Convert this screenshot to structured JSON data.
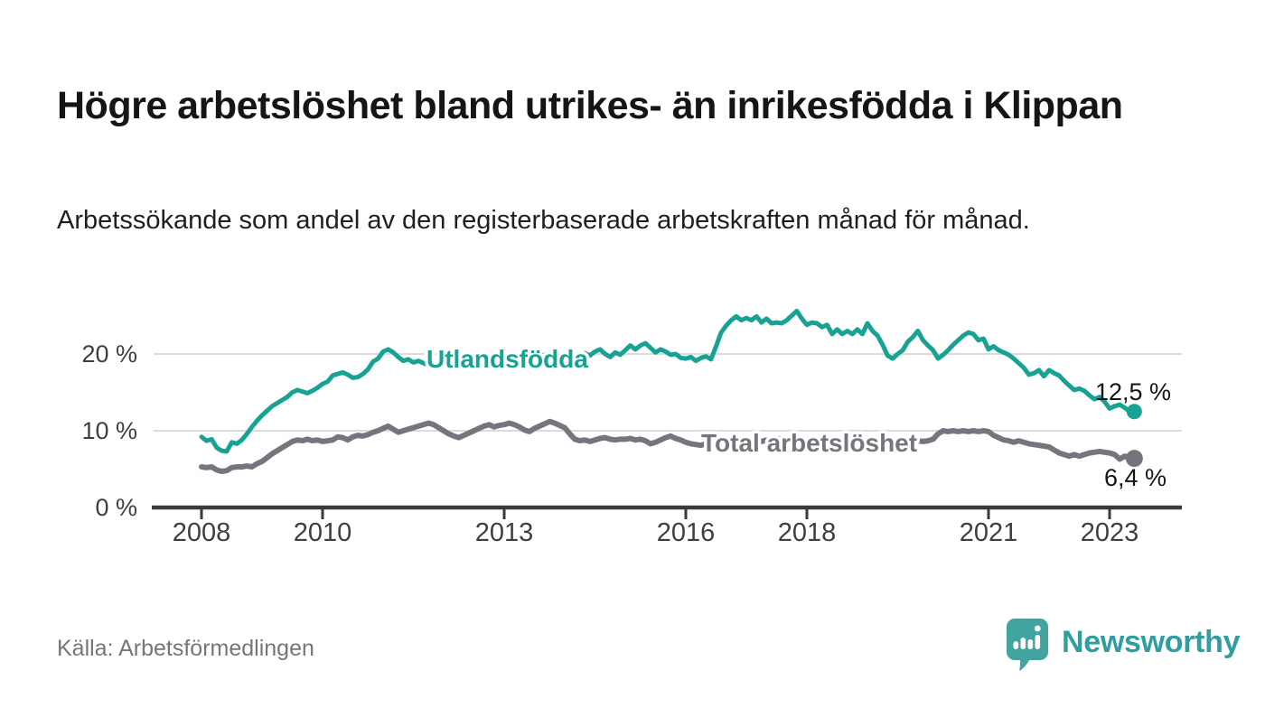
{
  "header": {
    "title": "Högre arbetslöshet bland utrikes- än inrikesfödda i Klippan",
    "subtitle": "Arbetssökande som andel av den registerbaserade arbetskraften månad för månad."
  },
  "footer": {
    "source": "Källa: Arbetsförmedlingen",
    "brand": "Newsworthy"
  },
  "colors": {
    "foreign_line": "#18a294",
    "total_line": "#75757d",
    "gridline": "#dbdbdb",
    "axis": "#3a3a3a",
    "tick_label": "#3f3f3f",
    "value_label": "#141414",
    "brand_bubble": "#41a49f",
    "brand_text": "#2f9ea1"
  },
  "chart_data": {
    "type": "line",
    "title": "Högre arbetslöshet bland utrikes- än inrikesfödda i Klippan",
    "subtitle": "Arbetssökande som andel av den registerbaserade arbetskraften månad för månad.",
    "frequency": "monthly",
    "x_start_year": 2008,
    "x_end_label": "2023",
    "grid": true,
    "ylim": [
      0,
      27
    ],
    "x_ticks": [
      2008,
      2010,
      2013,
      2016,
      2018,
      2021,
      2023
    ],
    "y_ticks": [
      {
        "value": 0,
        "label": "0 %"
      },
      {
        "value": 10,
        "label": "10 %"
      },
      {
        "value": 20,
        "label": "20 %"
      }
    ],
    "series": [
      {
        "name": "Utlandsfödda",
        "color": "#18a294",
        "end_value": 12.5,
        "end_value_label": "12,5 %",
        "values": [
          9.2,
          8.7,
          8.9,
          7.8,
          7.4,
          7.3,
          8.5,
          8.3,
          8.8,
          9.6,
          10.5,
          11.3,
          12.0,
          12.6,
          13.2,
          13.6,
          14.0,
          14.4,
          15.0,
          15.3,
          15.1,
          14.9,
          15.2,
          15.6,
          16.1,
          16.4,
          17.2,
          17.4,
          17.6,
          17.3,
          16.9,
          17.0,
          17.4,
          18.0,
          19.0,
          19.4,
          20.3,
          20.6,
          20.2,
          19.6,
          19.1,
          19.3,
          18.9,
          19.1,
          18.8,
          18.6,
          18.5,
          18.7,
          18.6,
          18.9,
          19.2,
          19.0,
          18.7,
          18.9,
          19.2,
          19.0,
          19.3,
          19.5,
          19.3,
          19.1,
          19.4,
          19.6,
          19.3,
          19.0,
          19.2,
          19.5,
          19.8,
          19.6,
          19.9,
          20.1,
          19.8,
          19.6,
          19.8,
          20.0,
          19.7,
          19.9,
          20.1,
          19.8,
          20.3,
          20.6,
          20.0,
          19.6,
          20.2,
          19.9,
          20.5,
          21.1,
          20.6,
          21.1,
          21.4,
          20.8,
          20.2,
          20.6,
          20.3,
          19.9,
          20.0,
          19.5,
          19.4,
          19.6,
          19.1,
          19.5,
          19.7,
          19.3,
          21.0,
          22.8,
          23.7,
          24.4,
          24.9,
          24.4,
          24.7,
          24.4,
          24.9,
          24.1,
          24.6,
          24.0,
          24.1,
          24.0,
          24.4,
          25.0,
          25.6,
          24.6,
          23.8,
          24.1,
          24.0,
          23.5,
          23.8,
          22.6,
          23.2,
          22.6,
          23.0,
          22.6,
          23.2,
          22.6,
          24.0,
          23.0,
          22.4,
          21.2,
          19.8,
          19.4,
          20.0,
          20.5,
          21.6,
          22.2,
          23.0,
          21.8,
          21.1,
          20.5,
          19.4,
          19.9,
          20.5,
          21.2,
          21.8,
          22.4,
          22.8,
          22.6,
          21.8,
          22.0,
          20.6,
          21.0,
          20.5,
          20.2,
          19.9,
          19.4,
          18.8,
          18.2,
          17.3,
          17.5,
          17.9,
          17.1,
          17.9,
          17.5,
          17.2,
          16.5,
          15.9,
          15.3,
          15.5,
          15.2,
          14.6,
          14.1,
          14.4,
          13.8,
          12.9,
          13.2,
          13.4,
          13.0,
          12.5
        ]
      },
      {
        "name": "Total arbetslöshet",
        "color": "#75757d",
        "end_value": 6.4,
        "end_value_label": "6,4 %",
        "values": [
          5.3,
          5.2,
          5.3,
          4.9,
          4.7,
          4.8,
          5.2,
          5.3,
          5.3,
          5.4,
          5.3,
          5.7,
          6.0,
          6.5,
          7.0,
          7.4,
          7.8,
          8.2,
          8.6,
          8.8,
          8.7,
          8.9,
          8.7,
          8.8,
          8.6,
          8.7,
          8.8,
          9.2,
          9.1,
          8.8,
          9.2,
          9.4,
          9.3,
          9.5,
          9.8,
          10.0,
          10.3,
          10.6,
          10.2,
          9.8,
          10.0,
          10.2,
          10.4,
          10.6,
          10.8,
          11.0,
          10.8,
          10.4,
          10.0,
          9.6,
          9.3,
          9.1,
          9.4,
          9.7,
          10.0,
          10.3,
          10.6,
          10.8,
          10.5,
          10.7,
          10.8,
          11.0,
          10.8,
          10.5,
          10.1,
          9.9,
          10.3,
          10.6,
          10.9,
          11.2,
          11.0,
          10.7,
          10.4,
          9.6,
          8.9,
          8.7,
          8.8,
          8.6,
          8.8,
          9.0,
          9.1,
          8.9,
          8.8,
          8.9,
          8.9,
          9.0,
          8.8,
          8.9,
          8.7,
          8.3,
          8.5,
          8.8,
          9.1,
          9.3,
          9.0,
          8.8,
          8.5,
          8.3,
          8.2,
          8.1,
          8.3,
          8.5,
          8.4,
          8.6,
          8.5,
          8.7,
          8.6,
          8.5,
          8.5,
          8.7,
          8.9,
          8.6,
          8.8,
          8.7,
          8.9,
          9.0,
          8.8,
          8.9,
          9.0,
          8.8,
          8.7,
          8.8,
          8.6,
          8.5,
          8.7,
          8.4,
          8.6,
          8.5,
          8.3,
          8.5,
          8.6,
          8.4,
          8.6,
          8.4,
          8.2,
          8.3,
          8.1,
          8.3,
          8.5,
          8.4,
          8.6,
          8.5,
          8.7,
          8.6,
          8.7,
          8.9,
          9.6,
          10.0,
          9.9,
          10.0,
          9.9,
          10.0,
          9.9,
          10.0,
          9.9,
          10.0,
          9.9,
          9.4,
          9.1,
          8.8,
          8.7,
          8.5,
          8.7,
          8.5,
          8.3,
          8.2,
          8.1,
          8.0,
          7.9,
          7.5,
          7.1,
          6.9,
          6.7,
          6.9,
          6.7,
          6.9,
          7.1,
          7.2,
          7.3,
          7.2,
          7.1,
          6.9,
          6.3,
          6.7,
          6.4
        ]
      }
    ]
  }
}
